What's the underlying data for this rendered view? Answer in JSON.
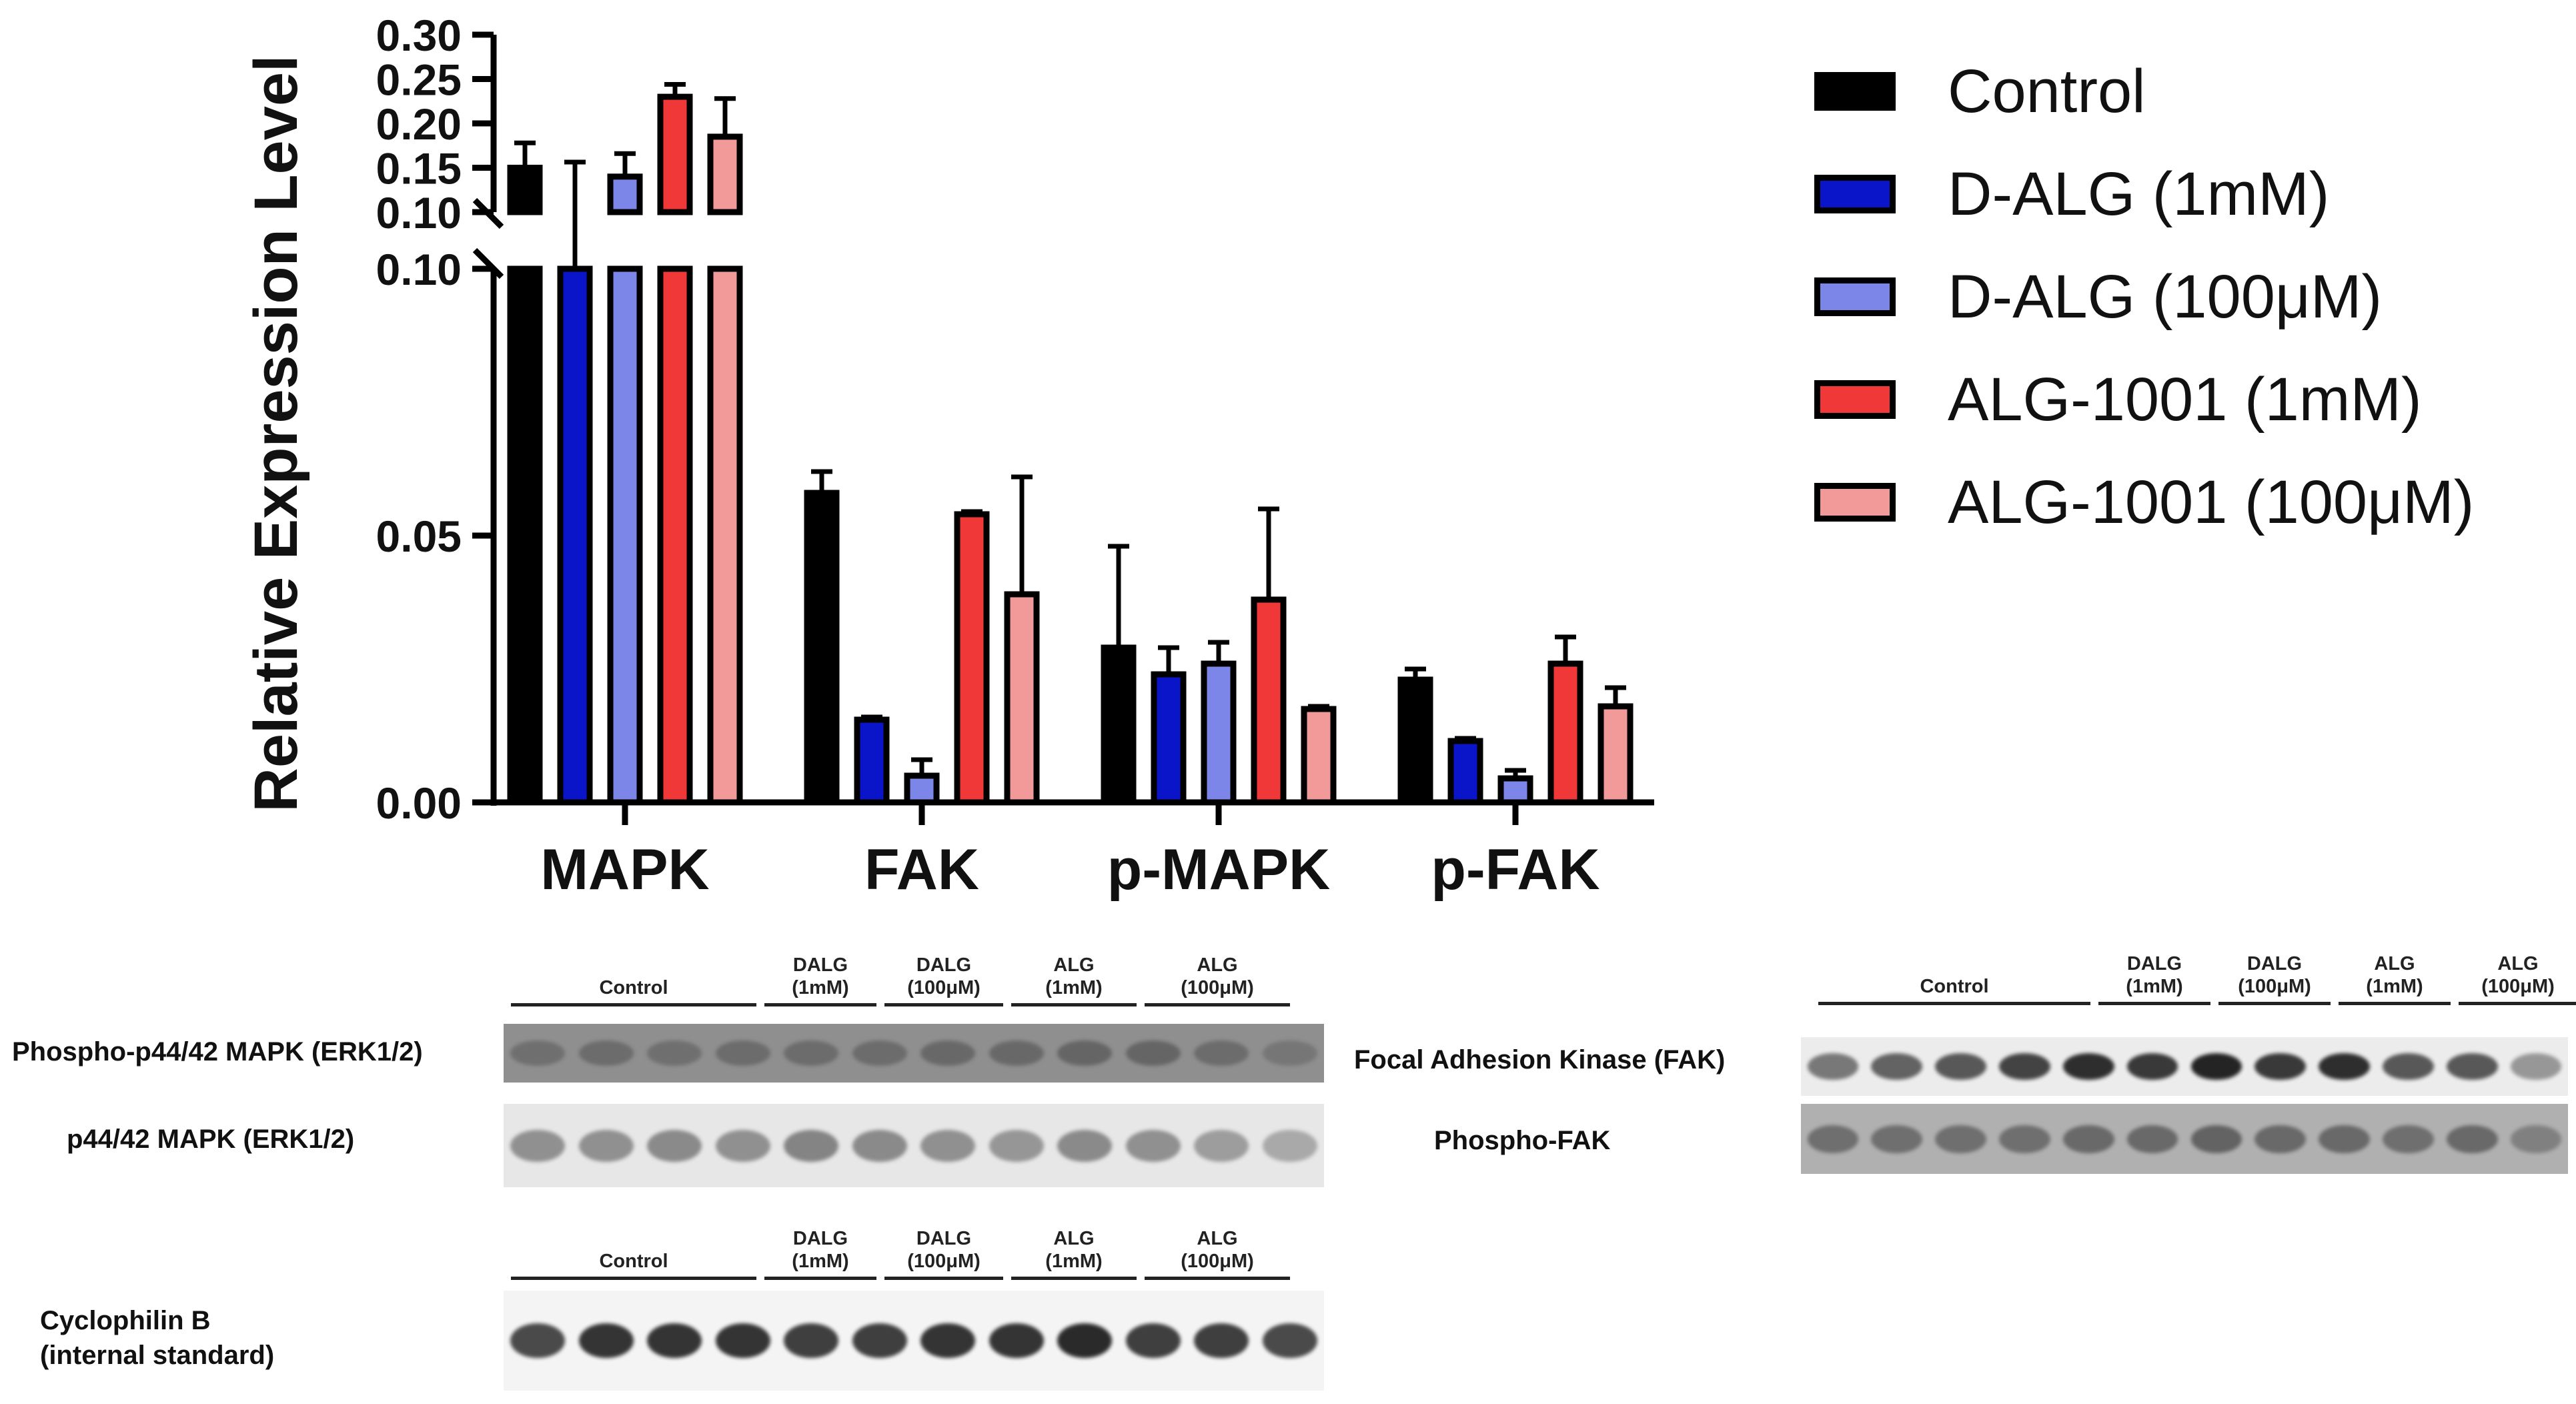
{
  "chart_data": {
    "type": "bar",
    "ylabel": "Relative Expression Level",
    "categories": [
      "MAPK",
      "FAK",
      "p-MAPK",
      "p-FAK"
    ],
    "y_axis_break": true,
    "ylim_lower": [
      0,
      0.1
    ],
    "ylim_upper": [
      0.1,
      0.3
    ],
    "yticks_lower": [
      "0.00",
      "0.05",
      "0.10"
    ],
    "yticks_upper": [
      "0.10",
      "0.15",
      "0.20",
      "0.25",
      "0.30"
    ],
    "series": [
      {
        "name": "Control",
        "color": "#000000",
        "values": [
          0.15,
          0.058,
          0.029,
          0.023
        ],
        "errors": [
          0.028,
          0.004,
          0.019,
          0.002
        ]
      },
      {
        "name": "D-ALG (1mM)",
        "color": "#0a14c8",
        "values": [
          0.1,
          0.0155,
          0.024,
          0.0115
        ],
        "errors": [
          0.02,
          0.0005,
          0.005,
          0.0005
        ]
      },
      {
        "name": "D-ALG (100μM)",
        "color": "#7b86e8",
        "values": [
          0.14,
          0.005,
          0.026,
          0.0045
        ],
        "errors": [
          0.026,
          0.003,
          0.004,
          0.0015
        ]
      },
      {
        "name": "ALG-1001 (1mM)",
        "color": "#f03838",
        "values": [
          0.23,
          0.054,
          0.038,
          0.026
        ],
        "errors": [
          0.014,
          0.0005,
          0.017,
          0.005
        ]
      },
      {
        "name": "ALG-1001 (100μM)",
        "color": "#f29a9a",
        "values": [
          0.185,
          0.039,
          0.0175,
          0.018
        ],
        "errors": [
          0.043,
          0.022,
          0.0005,
          0.0035
        ]
      }
    ],
    "grid": false,
    "legend_position": "right"
  },
  "blots": {
    "lane_groups": [
      {
        "line1": "",
        "line2": "Control"
      },
      {
        "line1": "DALG",
        "line2": "(1mM)"
      },
      {
        "line1": "DALG",
        "line2": "(100μM)"
      },
      {
        "line1": "ALG",
        "line2": "(1mM)"
      },
      {
        "line1": "ALG",
        "line2": "(100μM)"
      }
    ],
    "mapk_phospho_label": "Phospho-p44/42 MAPK (ERK1/2)",
    "mapk_total_label": "p44/42 MAPK (ERK1/2)",
    "cyclophilin_label_1": "Cyclophilin  B",
    "cyclophilin_label_2": "(internal standard)",
    "fak_label": "Focal  Adhesion  Kinase  (FAK)",
    "pfak_label": "Phospho-FAK"
  }
}
